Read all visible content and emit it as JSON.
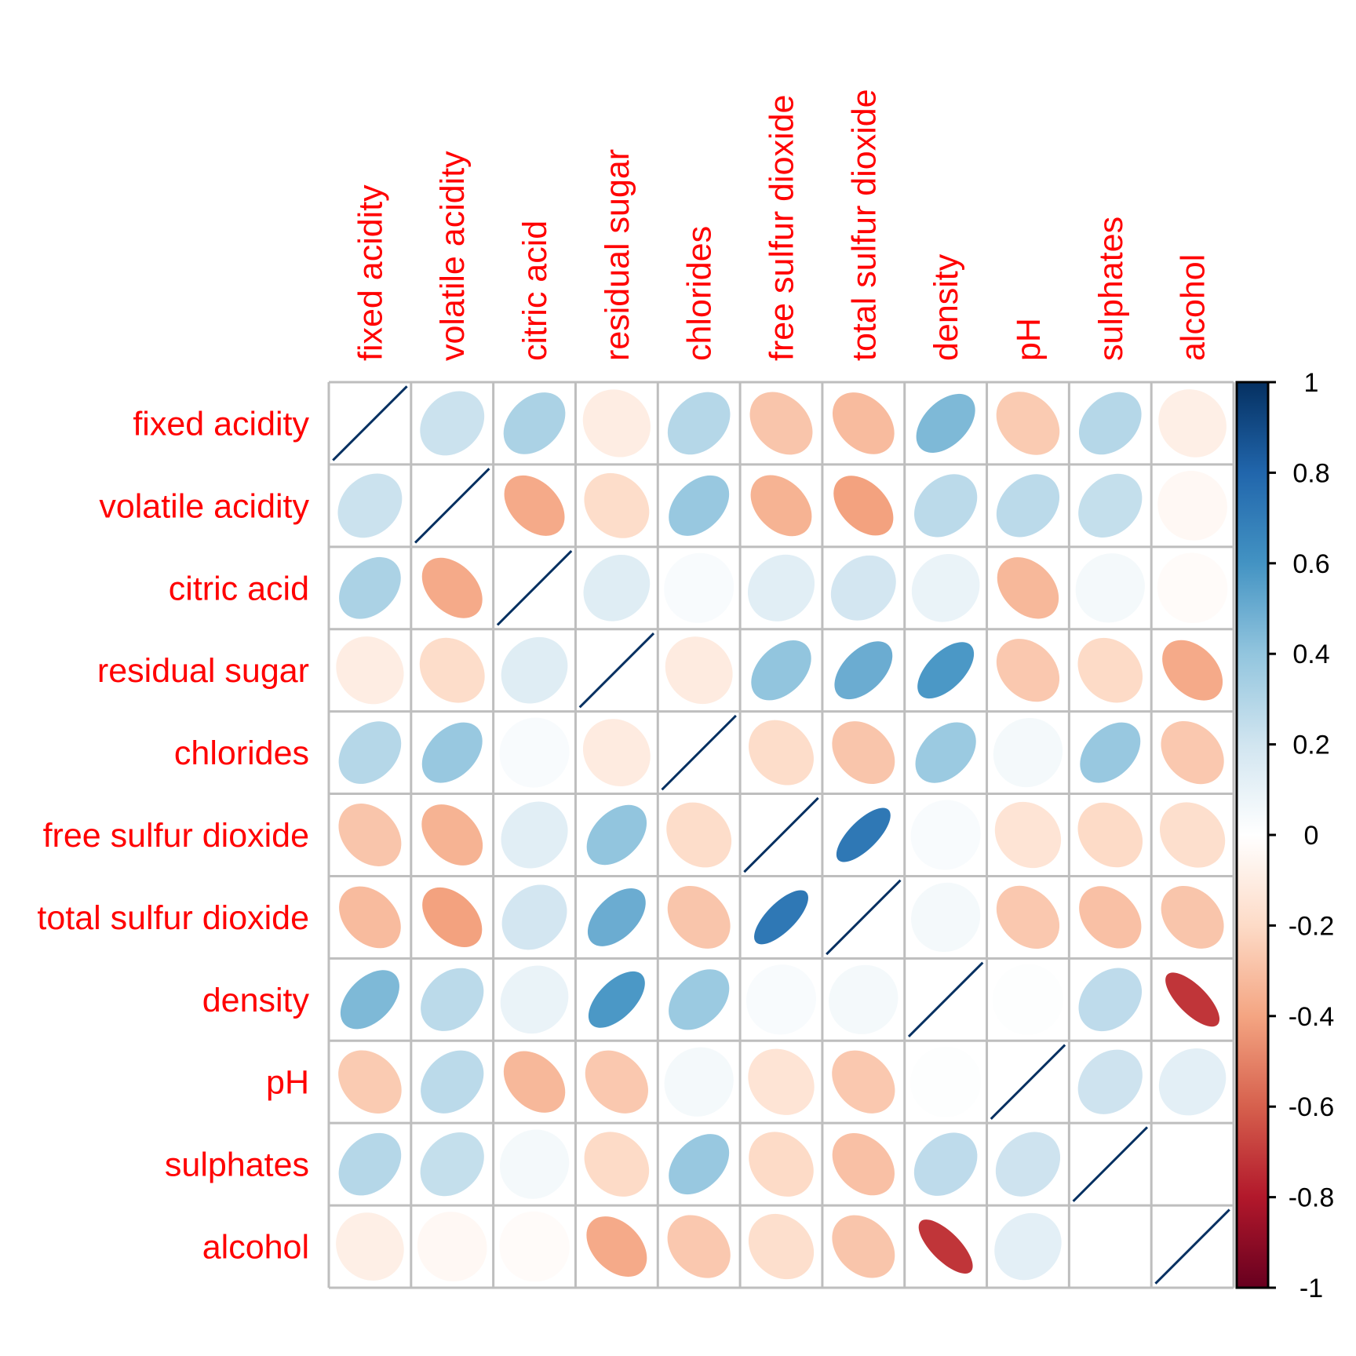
{
  "chart_data": {
    "type": "heatmap",
    "subtype": "correlation-ellipse-matrix",
    "title": "",
    "variables": [
      "fixed acidity",
      "volatile acidity",
      "citric acid",
      "residual sugar",
      "chlorides",
      "free sulfur dioxide",
      "total sulfur dioxide",
      "density",
      "pH",
      "sulphates",
      "alcohol"
    ],
    "matrix": [
      [
        1.0,
        0.22,
        0.32,
        -0.1,
        0.29,
        -0.28,
        -0.32,
        0.45,
        -0.26,
        0.29,
        -0.09
      ],
      [
        0.22,
        1.0,
        -0.38,
        -0.19,
        0.38,
        -0.35,
        -0.41,
        0.27,
        0.27,
        0.24,
        -0.04
      ],
      [
        0.32,
        -0.38,
        1.0,
        0.14,
        0.03,
        0.13,
        0.19,
        0.09,
        -0.33,
        0.05,
        -0.02
      ],
      [
        -0.1,
        -0.19,
        0.14,
        1.0,
        -0.11,
        0.4,
        0.5,
        0.58,
        -0.27,
        -0.2,
        -0.38
      ],
      [
        0.29,
        0.38,
        0.03,
        -0.11,
        1.0,
        -0.19,
        -0.28,
        0.37,
        0.05,
        0.38,
        -0.27
      ],
      [
        -0.28,
        -0.35,
        0.13,
        0.4,
        -0.19,
        1.0,
        0.72,
        0.03,
        -0.15,
        -0.2,
        -0.18
      ],
      [
        -0.32,
        -0.41,
        0.19,
        0.5,
        -0.28,
        0.72,
        1.0,
        0.05,
        -0.27,
        -0.3,
        -0.28
      ],
      [
        0.45,
        0.27,
        0.09,
        0.58,
        0.37,
        0.03,
        0.05,
        1.0,
        0.01,
        0.26,
        -0.72
      ],
      [
        -0.26,
        0.27,
        -0.33,
        -0.27,
        0.05,
        -0.15,
        -0.27,
        0.01,
        1.0,
        0.21,
        0.12
      ],
      [
        0.29,
        0.24,
        0.05,
        -0.2,
        0.38,
        -0.2,
        -0.3,
        0.26,
        0.21,
        1.0,
        0.0
      ],
      [
        -0.09,
        -0.04,
        -0.02,
        -0.38,
        -0.27,
        -0.18,
        -0.28,
        -0.72,
        0.12,
        0.0,
        1.0
      ]
    ],
    "colorbar": {
      "range": [
        -1,
        1
      ],
      "ticks": [
        1,
        0.8,
        0.6,
        0.4,
        0.2,
        0,
        -0.2,
        -0.4,
        -0.6,
        -0.8,
        -1
      ],
      "tick_labels": [
        "1",
        "0.8",
        "0.6",
        "0.4",
        "0.2",
        "0",
        "-0.2",
        "-0.4",
        "-0.6",
        "-0.8",
        "-1"
      ],
      "palette_stops": [
        "#67001F",
        "#B2182B",
        "#D6604D",
        "#F4A582",
        "#FDDBC7",
        "#FFFFFF",
        "#D1E5F0",
        "#92C5DE",
        "#4393C3",
        "#2166AC",
        "#053061"
      ],
      "placement": "right"
    },
    "label_color": "#FF0000",
    "grid_color": "#BEBEBE",
    "diagonal_color": "#053061",
    "grid": true,
    "column_label_orientation": "vertical",
    "row_label_alignment": "right"
  }
}
